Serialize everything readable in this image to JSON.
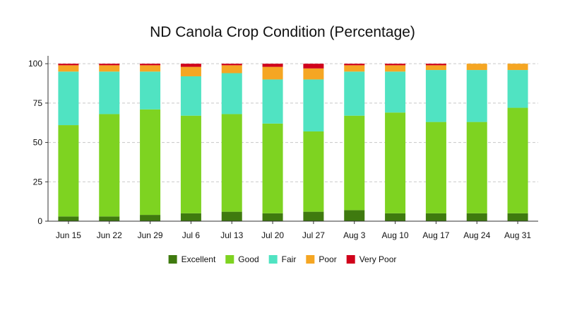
{
  "chart_data": {
    "type": "bar",
    "stacked": true,
    "title": "ND Canola Crop Condition (Percentage)",
    "xlabel": "",
    "ylabel": "",
    "ylim": [
      0,
      105
    ],
    "yticks": [
      0,
      25,
      50,
      75,
      100
    ],
    "grid": "horizontal dashed",
    "legend_position": "bottom",
    "categories": [
      "Jun 15",
      "Jun 22",
      "Jun 29",
      "Jul 6",
      "Jul 13",
      "Jul 20",
      "Jul 27",
      "Aug 3",
      "Aug 10",
      "Aug 17",
      "Aug 24",
      "Aug 31"
    ],
    "series": [
      {
        "name": "Excellent",
        "color": "#3f7a0f",
        "values": [
          3,
          3,
          4,
          5,
          6,
          5,
          6,
          7,
          5,
          5,
          5,
          5
        ]
      },
      {
        "name": "Good",
        "color": "#7ed321",
        "values": [
          58,
          65,
          67,
          62,
          62,
          57,
          51,
          60,
          64,
          58,
          58,
          67
        ]
      },
      {
        "name": "Fair",
        "color": "#50e3c2",
        "values": [
          34,
          27,
          24,
          25,
          26,
          28,
          33,
          28,
          26,
          33,
          33,
          24
        ]
      },
      {
        "name": "Poor",
        "color": "#f5a623",
        "values": [
          4,
          4,
          4,
          6,
          5,
          8,
          7,
          4,
          4,
          3,
          4,
          4
        ]
      },
      {
        "name": "Very Poor",
        "color": "#d0021b",
        "values": [
          1,
          1,
          1,
          2,
          1,
          2,
          3,
          1,
          1,
          1,
          0,
          0
        ]
      }
    ]
  }
}
